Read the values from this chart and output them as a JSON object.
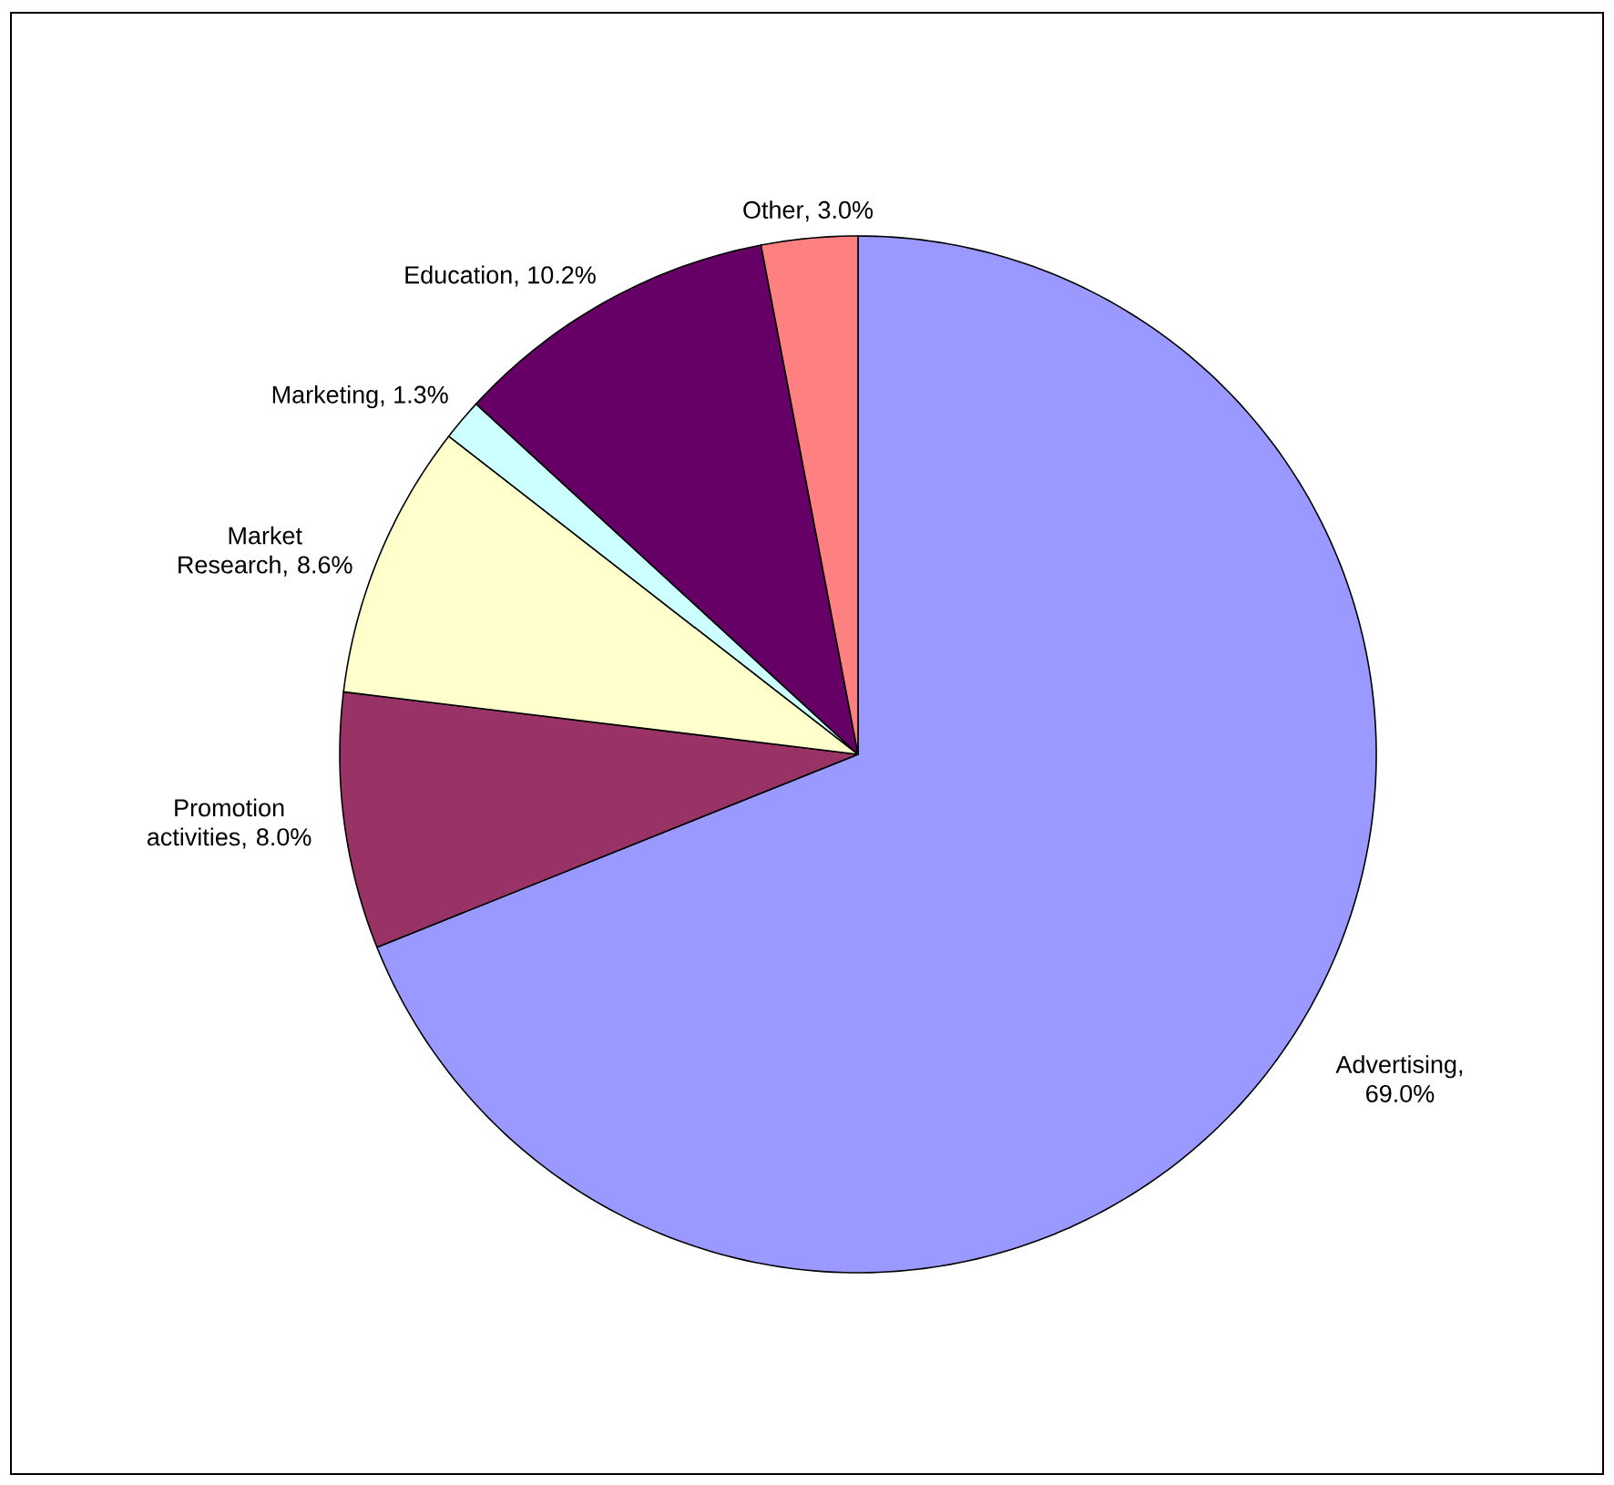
{
  "chart_data": {
    "type": "pie",
    "categories": [
      "Advertising",
      "Promotion activities",
      "Market Research",
      "Marketing",
      "Education",
      "Other"
    ],
    "values": [
      69.0,
      8.0,
      8.6,
      1.3,
      10.2,
      3.0
    ],
    "colors": [
      "#9999ff",
      "#993366",
      "#ffffcc",
      "#ccffff",
      "#660066",
      "#ff8080"
    ],
    "value_labels": [
      ", 69.0%",
      ", 8.0%",
      ", 8.6%",
      ", 1.3%",
      ", 10.2%",
      ", 3.0%"
    ]
  }
}
